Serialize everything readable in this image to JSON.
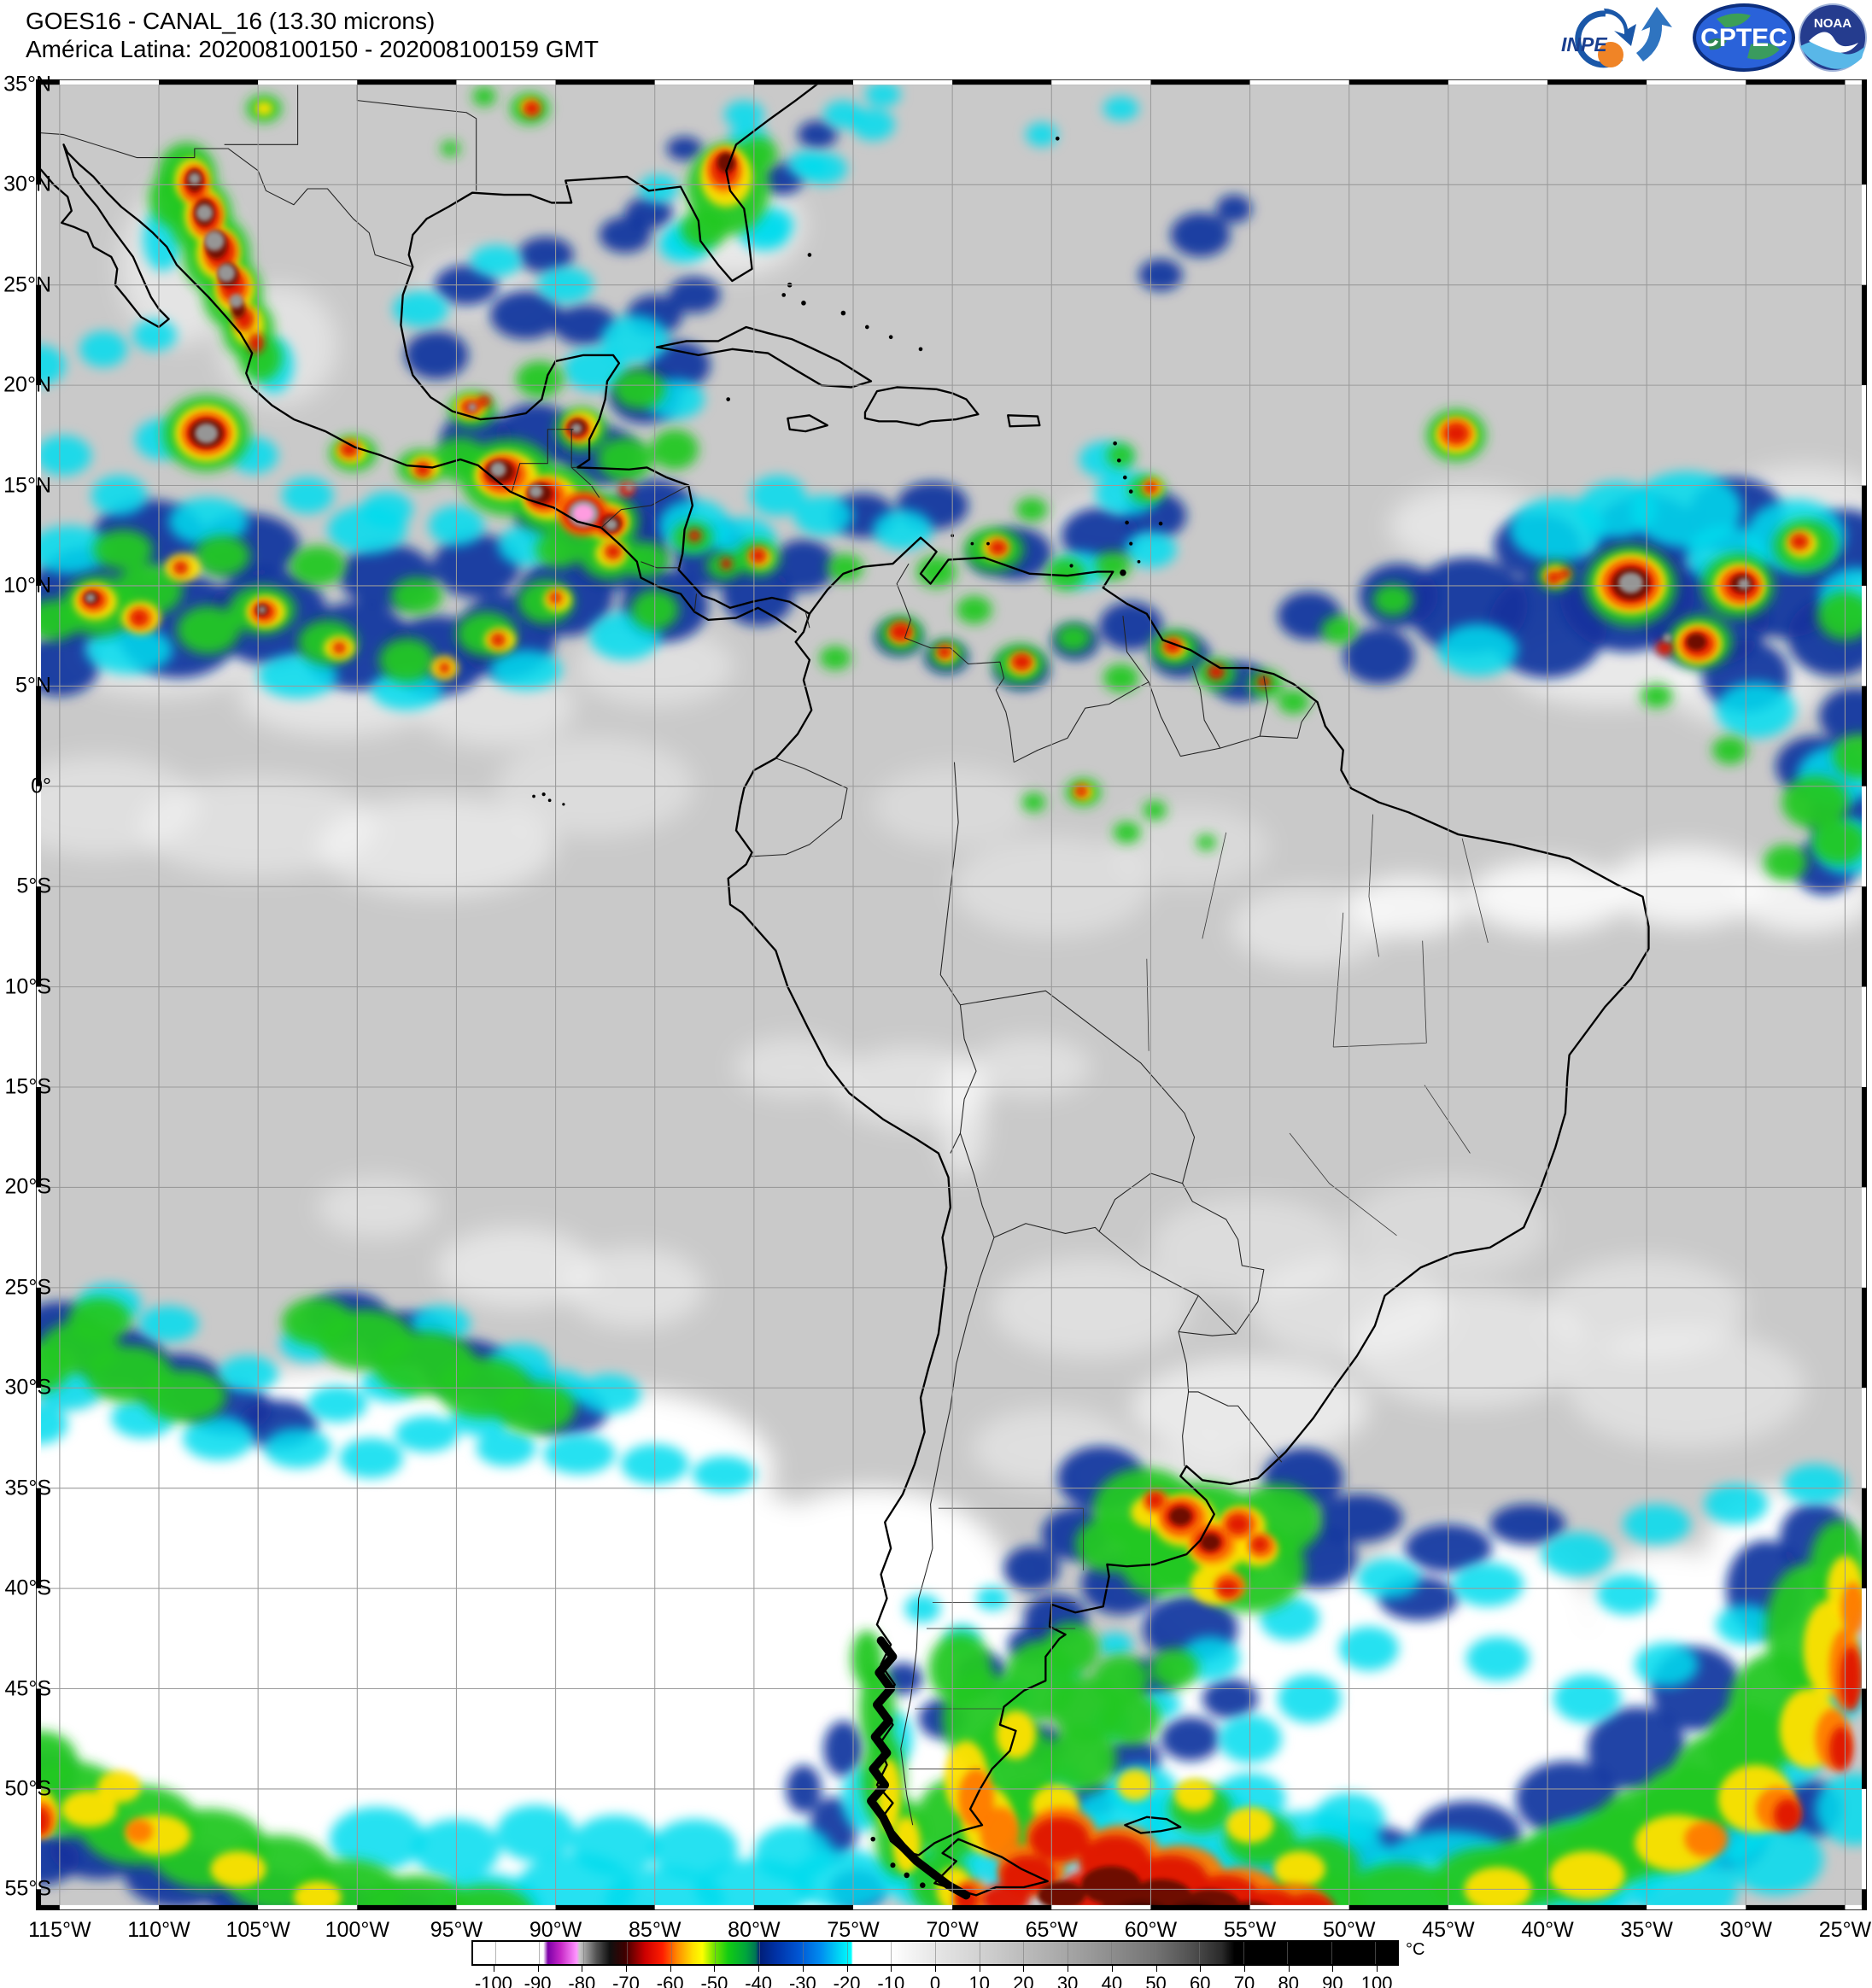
{
  "header": {
    "line1": "GOES16 - CANAL_16 (13.30 microns)",
    "line2": "América Latina: 202008100150 - 202008100159 GMT"
  },
  "logos": {
    "inpe": "INPE",
    "cptec": "CPTEC",
    "noaa": "NOAA"
  },
  "map": {
    "lon_min": -116.2,
    "lon_max": -23.9,
    "lat_min": -56.05,
    "lat_max": 35.25,
    "grid_step_deg": 5,
    "grid_color": "#9a9a9a",
    "frame_color": "#000000",
    "background_color": "#c9c9c9",
    "lat_labels": [
      {
        "lat": 35,
        "label": "35°N"
      },
      {
        "lat": 30,
        "label": "30°N"
      },
      {
        "lat": 25,
        "label": "25°N"
      },
      {
        "lat": 20,
        "label": "20°N"
      },
      {
        "lat": 15,
        "label": "15°N"
      },
      {
        "lat": 10,
        "label": "10°N"
      },
      {
        "lat": 5,
        "label": "5°N"
      },
      {
        "lat": 0,
        "label": "0°"
      },
      {
        "lat": -5,
        "label": "5°S"
      },
      {
        "lat": -10,
        "label": "10°S"
      },
      {
        "lat": -15,
        "label": "15°S"
      },
      {
        "lat": -20,
        "label": "20°S"
      },
      {
        "lat": -25,
        "label": "25°S"
      },
      {
        "lat": -30,
        "label": "30°S"
      },
      {
        "lat": -35,
        "label": "35°S"
      },
      {
        "lat": -40,
        "label": "40°S"
      },
      {
        "lat": -45,
        "label": "45°S"
      },
      {
        "lat": -50,
        "label": "50°S"
      },
      {
        "lat": -55,
        "label": "55°S"
      }
    ],
    "lon_labels": [
      {
        "lon": -115,
        "label": "115°W"
      },
      {
        "lon": -110,
        "label": "110°W"
      },
      {
        "lon": -105,
        "label": "105°W"
      },
      {
        "lon": -100,
        "label": "100°W"
      },
      {
        "lon": -95,
        "label": "95°W"
      },
      {
        "lon": -90,
        "label": "90°W"
      },
      {
        "lon": -85,
        "label": "85°W"
      },
      {
        "lon": -80,
        "label": "80°W"
      },
      {
        "lon": -75,
        "label": "75°W"
      },
      {
        "lon": -70,
        "label": "70°W"
      },
      {
        "lon": -65,
        "label": "65°W"
      },
      {
        "lon": -60,
        "label": "60°W"
      },
      {
        "lon": -55,
        "label": "55°W"
      },
      {
        "lon": -50,
        "label": "50°W"
      },
      {
        "lon": -45,
        "label": "45°W"
      },
      {
        "lon": -40,
        "label": "40°W"
      },
      {
        "lon": -35,
        "label": "35°W"
      },
      {
        "lon": -30,
        "label": "30°W"
      },
      {
        "lon": -25,
        "label": "25°W"
      }
    ]
  },
  "colorbar": {
    "unit": "°C",
    "min": -105,
    "max": 105,
    "ticks": [
      {
        "v": -100,
        "t": "-100"
      },
      {
        "v": -90,
        "t": "-90"
      },
      {
        "v": -80,
        "t": "-80"
      },
      {
        "v": -70,
        "t": "-70"
      },
      {
        "v": -60,
        "t": "-60"
      },
      {
        "v": -50,
        "t": "-50"
      },
      {
        "v": -40,
        "t": "-40"
      },
      {
        "v": -30,
        "t": "-30"
      },
      {
        "v": -20,
        "t": "-20"
      },
      {
        "v": -10,
        "t": "-10"
      },
      {
        "v": 0,
        "t": "0"
      },
      {
        "v": 10,
        "t": "10"
      },
      {
        "v": 20,
        "t": "20"
      },
      {
        "v": 30,
        "t": "30"
      },
      {
        "v": 40,
        "t": "40"
      },
      {
        "v": 50,
        "t": "50"
      },
      {
        "v": 60,
        "t": "60"
      },
      {
        "v": 70,
        "t": "70"
      },
      {
        "v": 80,
        "t": "80"
      },
      {
        "v": 90,
        "t": "90"
      },
      {
        "v": 100,
        "t": "100"
      }
    ],
    "stops": [
      {
        "p": 0.0,
        "c": "#ffffff"
      },
      {
        "p": 7.6,
        "c": "#ffffff"
      },
      {
        "p": 8.1,
        "c": "#7d00a8"
      },
      {
        "p": 9.5,
        "c": "#c829c8"
      },
      {
        "p": 11.2,
        "c": "#ff96ff"
      },
      {
        "p": 11.5,
        "c": "#c8c8c8"
      },
      {
        "p": 13.3,
        "c": "#555555"
      },
      {
        "p": 14.8,
        "c": "#101010"
      },
      {
        "p": 16.4,
        "c": "#3c0000"
      },
      {
        "p": 18.6,
        "c": "#cc0000"
      },
      {
        "p": 20.5,
        "c": "#ff1e00"
      },
      {
        "p": 22.1,
        "c": "#ff8c00"
      },
      {
        "p": 23.8,
        "c": "#ffe100"
      },
      {
        "p": 24.8,
        "c": "#fdff00"
      },
      {
        "p": 26.0,
        "c": "#7ce600"
      },
      {
        "p": 27.6,
        "c": "#12cc12"
      },
      {
        "p": 29.5,
        "c": "#00a63c"
      },
      {
        "p": 30.6,
        "c": "#007455"
      },
      {
        "p": 31.0,
        "c": "#001e78"
      },
      {
        "p": 32.9,
        "c": "#0033a8"
      },
      {
        "p": 35.2,
        "c": "#0055d2"
      },
      {
        "p": 37.6,
        "c": "#008cf0"
      },
      {
        "p": 39.5,
        "c": "#00d2f5"
      },
      {
        "p": 40.9,
        "c": "#00ffff"
      },
      {
        "p": 41.1,
        "c": "#ffffff"
      },
      {
        "p": 45.2,
        "c": "#ffffff"
      },
      {
        "p": 50.0,
        "c": "#e6e6e6"
      },
      {
        "p": 54.8,
        "c": "#d2d2d2"
      },
      {
        "p": 59.5,
        "c": "#bcbcbc"
      },
      {
        "p": 64.3,
        "c": "#a6a6a6"
      },
      {
        "p": 69.0,
        "c": "#8e8e8e"
      },
      {
        "p": 73.8,
        "c": "#747474"
      },
      {
        "p": 77.6,
        "c": "#525252"
      },
      {
        "p": 81.0,
        "c": "#2a2a2a"
      },
      {
        "p": 82.4,
        "c": "#000000"
      },
      {
        "p": 100.0,
        "c": "#000000"
      }
    ]
  }
}
